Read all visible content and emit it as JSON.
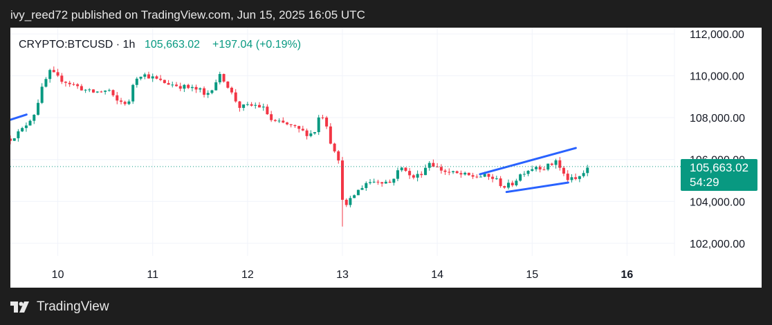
{
  "header": {
    "text": "ivy_reed72 published on TradingView.com, Jun 15, 2025 16:05 UTC"
  },
  "footer": {
    "brand": "TradingView",
    "logo_icon": "tradingview-logo-icon"
  },
  "colors": {
    "up": "#089981",
    "down": "#f23645",
    "trendline": "#2962ff",
    "grid": "#f0f3fa",
    "page_bg": "#1e1e1e"
  },
  "chart_data": {
    "type": "candlestick",
    "symbol": "CRYPTO:BTCUSD",
    "interval": "1h",
    "last_price": "105,663.02",
    "change": "+197.04",
    "change_pct": "(+0.19%)",
    "countdown": "54:29",
    "y_axis": {
      "ticks": [
        "112,000.00",
        "110,000.00",
        "108,000.00",
        "106,000.00",
        "104,000.00",
        "102,000.00"
      ],
      "ylim": [
        101400,
        112300
      ],
      "side": "right"
    },
    "x_axis": {
      "ticks": [
        "10",
        "11",
        "12",
        "13",
        "14",
        "15",
        "16"
      ],
      "xlim": [
        9.5,
        16.5
      ]
    },
    "grid": true,
    "last_price_value": 105663,
    "candles": [],
    "trendlines": [
      {
        "from": [
          9.5,
          107900
        ],
        "to": [
          9.67,
          108150
        ]
      },
      {
        "from": [
          14.45,
          105300
        ],
        "to": [
          15.46,
          106550
        ]
      },
      {
        "from": [
          14.73,
          104450
        ],
        "to": [
          15.38,
          104900
        ]
      }
    ]
  }
}
